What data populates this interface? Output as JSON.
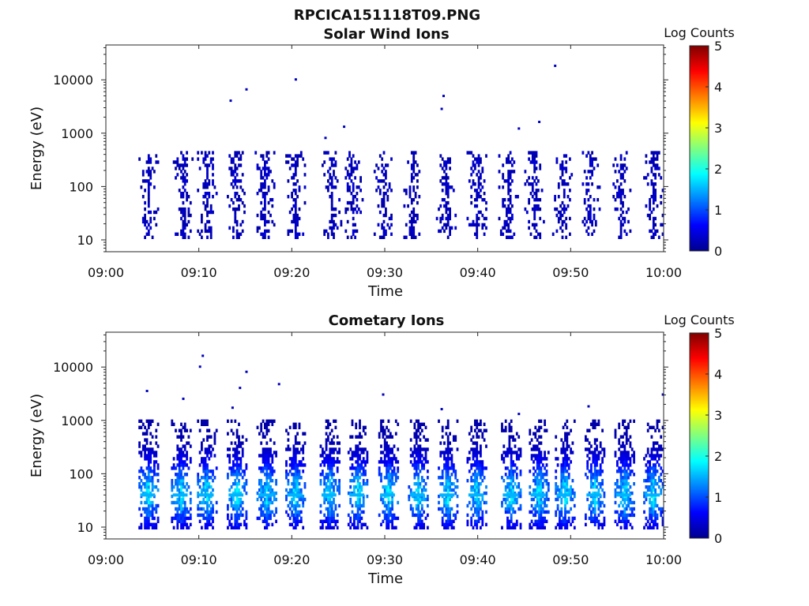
{
  "figure_title": "RPCICA151118T09.PNG",
  "chart_data": [
    {
      "type": "heatmap",
      "title": "Solar Wind Ions",
      "xlabel": "Time",
      "ylabel": "Energy (eV)",
      "x_ticks": [
        "09:00",
        "09:10",
        "09:20",
        "09:30",
        "09:40",
        "09:50",
        "10:00"
      ],
      "xlim": [
        "09:00",
        "10:00"
      ],
      "yscale": "log",
      "ylim": [
        6,
        45000
      ],
      "y_ticks": [
        10,
        100,
        1000,
        10000
      ],
      "y_tick_labels": [
        "10",
        "100",
        "1000",
        "10000"
      ],
      "colorbar": {
        "label": "Log Counts",
        "colormap": "jet",
        "range": [
          0,
          5
        ],
        "ticks": [
          "0",
          "1",
          "2",
          "3",
          "4",
          "5"
        ]
      },
      "sweep_times": [
        "09:04.5",
        "09:08.2",
        "09:10.8",
        "09:14.0",
        "09:17.0",
        "09:20.3",
        "09:24.2",
        "09:26.5",
        "09:29.8",
        "09:33.0",
        "09:36.5",
        "09:39.8",
        "09:43.2",
        "09:46.0",
        "09:49.0",
        "09:52.0",
        "09:55.3",
        "09:58.8"
      ],
      "typical_energy_range_eV": [
        12,
        400
      ],
      "typical_log_counts": 0.3,
      "sparse_high_energy_points": [
        {
          "time": "09:13.3",
          "energy_eV": 4000
        },
        {
          "time": "09:15.0",
          "energy_eV": 6500
        },
        {
          "time": "09:20.3",
          "energy_eV": 10000
        },
        {
          "time": "09:23.5",
          "energy_eV": 800
        },
        {
          "time": "09:25.5",
          "energy_eV": 1300
        },
        {
          "time": "09:36.0",
          "energy_eV": 2800
        },
        {
          "time": "09:36.2",
          "energy_eV": 4900
        },
        {
          "time": "09:44.3",
          "energy_eV": 1200
        },
        {
          "time": "09:46.5",
          "energy_eV": 1600
        },
        {
          "time": "09:48.2",
          "energy_eV": 18000
        }
      ]
    },
    {
      "type": "heatmap",
      "title": "Cometary Ions",
      "xlabel": "Time",
      "ylabel": "Energy (eV)",
      "x_ticks": [
        "09:00",
        "09:10",
        "09:20",
        "09:30",
        "09:40",
        "09:50",
        "10:00"
      ],
      "xlim": [
        "09:00",
        "10:00"
      ],
      "yscale": "log",
      "ylim": [
        6,
        45000
      ],
      "y_ticks": [
        10,
        100,
        1000,
        10000
      ],
      "y_tick_labels": [
        "10",
        "100",
        "1000",
        "10000"
      ],
      "colorbar": {
        "label": "Log Counts",
        "colormap": "jet",
        "range": [
          0,
          5
        ],
        "ticks": [
          "0",
          "1",
          "2",
          "3",
          "4",
          "5"
        ]
      },
      "sweep_times": [
        "09:04.5",
        "09:08.0",
        "09:10.8",
        "09:14.0",
        "09:17.2",
        "09:20.3",
        "09:24.0",
        "09:27.0",
        "09:30.3",
        "09:33.5",
        "09:36.7",
        "09:39.8",
        "09:43.5",
        "09:46.5",
        "09:49.3",
        "09:52.5",
        "09:55.7",
        "09:58.8"
      ],
      "typical_energy_range_eV": [
        12,
        900
      ],
      "peak_energy_eV": 40,
      "peak_log_counts": 1.6,
      "sparse_high_energy_points": [
        {
          "time": "09:04.3",
          "energy_eV": 3500
        },
        {
          "time": "09:08.2",
          "energy_eV": 2500
        },
        {
          "time": "09:10.0",
          "energy_eV": 10000
        },
        {
          "time": "09:10.3",
          "energy_eV": 16000
        },
        {
          "time": "09:13.5",
          "energy_eV": 1700
        },
        {
          "time": "09:14.3",
          "energy_eV": 4000
        },
        {
          "time": "09:15.0",
          "energy_eV": 8000
        },
        {
          "time": "09:18.5",
          "energy_eV": 4700
        },
        {
          "time": "09:29.7",
          "energy_eV": 3000
        },
        {
          "time": "09:36.0",
          "energy_eV": 1600
        },
        {
          "time": "09:44.3",
          "energy_eV": 1300
        },
        {
          "time": "09:51.8",
          "energy_eV": 1800
        },
        {
          "time": "09:59.8",
          "energy_eV": 3000
        }
      ]
    }
  ]
}
